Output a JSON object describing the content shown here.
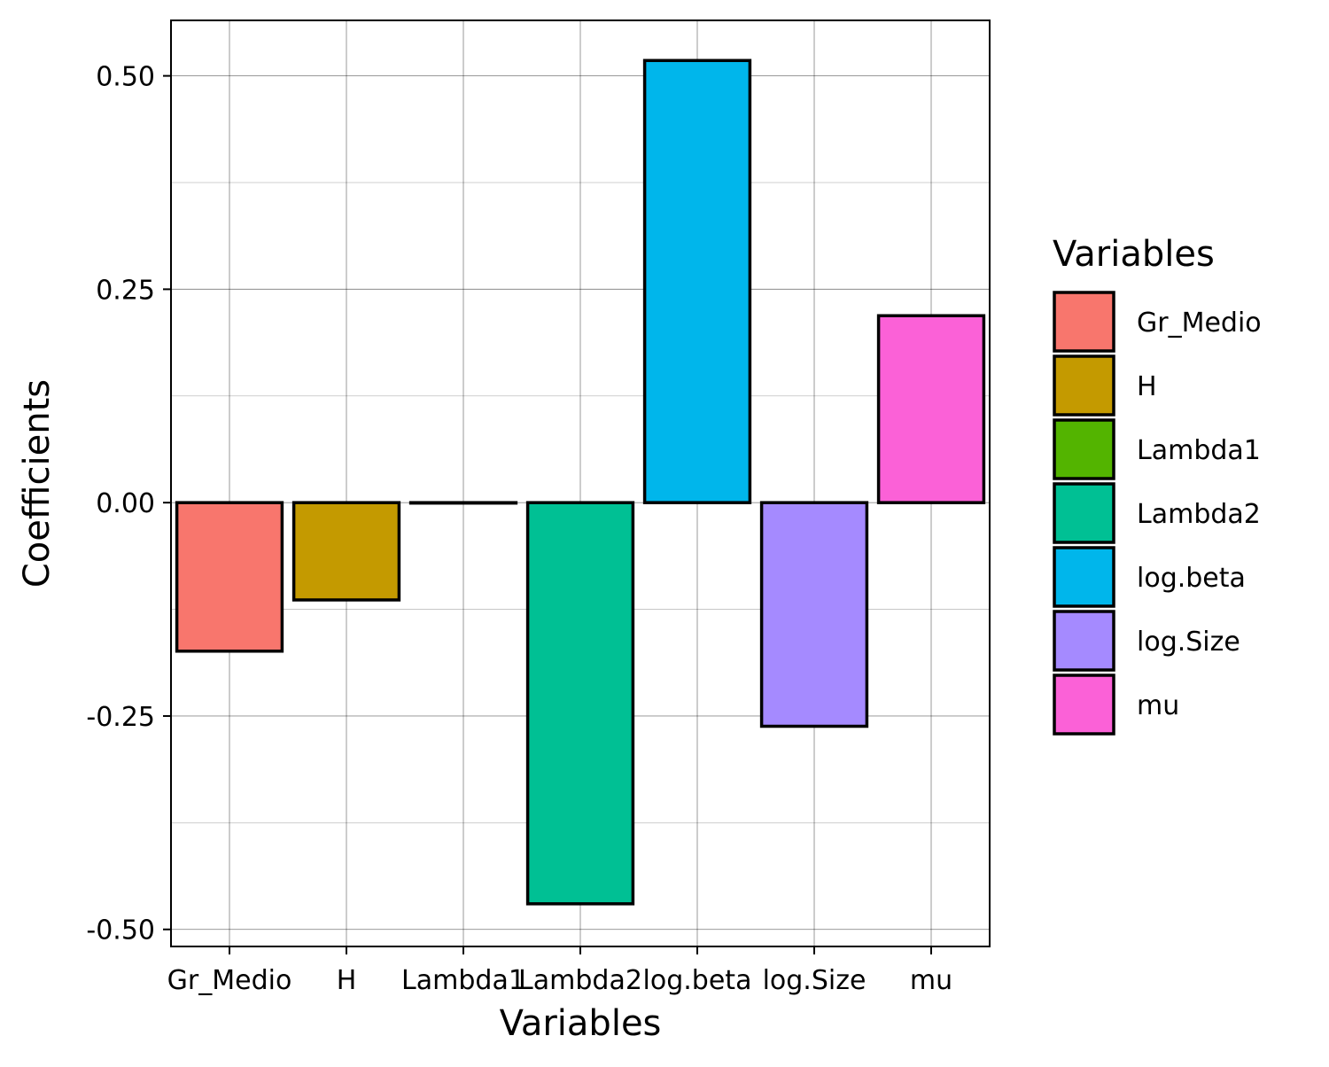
{
  "chart_data": {
    "type": "bar",
    "title": "",
    "xlabel": "Variables",
    "ylabel": "Coefficients",
    "categories": [
      "Gr_Medio",
      "H",
      "Lambda1",
      "Lambda2",
      "log.beta",
      "log.Size",
      "mu"
    ],
    "values": [
      -0.174,
      -0.114,
      0.0,
      -0.47,
      0.518,
      -0.262,
      0.219
    ],
    "colors": [
      "#F8766D",
      "#C49A00",
      "#53B400",
      "#00C094",
      "#00B6EB",
      "#A58AFF",
      "#FB61D7"
    ],
    "ylim": [
      -0.52,
      0.565
    ],
    "yticks": [
      -0.5,
      -0.25,
      0.0,
      0.25,
      0.5
    ],
    "ytick_labels": [
      "-0.50",
      "-0.25",
      "0.00",
      "0.25",
      "0.50"
    ],
    "grid": true,
    "legend": {
      "title": "Variables",
      "position": "right",
      "entries": [
        "Gr_Medio",
        "H",
        "Lambda1",
        "Lambda2",
        "log.beta",
        "log.Size",
        "mu"
      ]
    }
  }
}
